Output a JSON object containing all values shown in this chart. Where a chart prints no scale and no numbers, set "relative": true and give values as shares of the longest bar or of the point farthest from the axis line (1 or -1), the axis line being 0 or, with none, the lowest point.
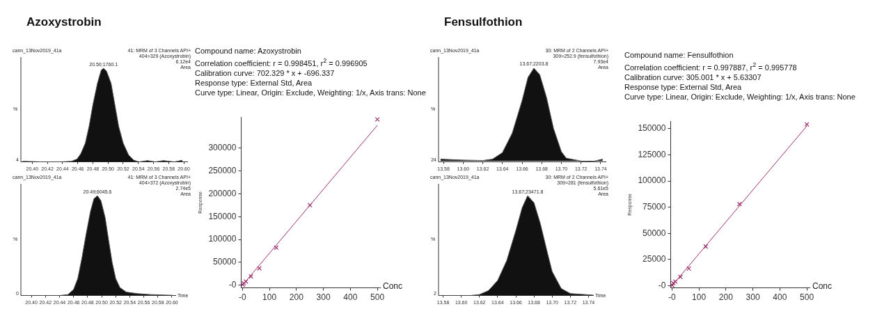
{
  "chart_data": [
    {
      "type": "area",
      "title": "Azoxystrobin",
      "relative": true,
      "ylabel": "%",
      "color": "#111111",
      "grid": false,
      "legend": false,
      "x": [
        20.3875,
        20.4125,
        20.4375,
        20.4518,
        20.459,
        20.464,
        20.47,
        20.475,
        20.48,
        20.486,
        20.491,
        20.494,
        20.498,
        20.504,
        20.509,
        20.514,
        20.52,
        20.527,
        20.534,
        20.541,
        20.552,
        20.5625,
        20.573,
        20.5875,
        20.598
      ],
      "values": [
        0.007,
        0,
        0,
        0.007,
        0.03,
        0.086,
        0.2,
        0.38,
        0.61,
        0.84,
        0.98,
        1,
        0.97,
        0.84,
        0.61,
        0.38,
        0.2,
        0.075,
        0.018,
        0,
        0.014,
        0,
        0.014,
        0,
        0.018
      ],
      "xlim": [
        20.385,
        20.605
      ],
      "xticks": [
        {
          "value": 20.4,
          "label": "20.40"
        },
        {
          "value": 20.42,
          "label": "20.42"
        },
        {
          "value": 20.44,
          "label": "20.44"
        },
        {
          "value": 20.46,
          "label": "20.46"
        },
        {
          "value": 20.48,
          "label": "20.48"
        },
        {
          "value": 20.5,
          "label": "20.50"
        },
        {
          "value": 20.52,
          "label": "20.52"
        },
        {
          "value": 20.54,
          "label": "20.54"
        },
        {
          "value": 20.56,
          "label": "20.56"
        },
        {
          "value": 20.58,
          "label": "20.58"
        },
        {
          "value": 20.6,
          "label": "20.60"
        }
      ],
      "annotations": [
        "cann_13Nov2019_41a",
        "41: MRM of 3 Channels API+",
        "404>329 (Azoxystrobin)",
        "6.12e4",
        "Area",
        "4",
        {
          "text": "20.50;1760.1",
          "x": 20.494,
          "y": 1
        }
      ]
    },
    {
      "type": "area",
      "relative": true,
      "ylabel": "%",
      "xlabel": "Time",
      "color": "#111111",
      "grid": false,
      "legend": false,
      "x": [
        20.385,
        20.44,
        20.452,
        20.46,
        20.466,
        20.472,
        20.478,
        20.484,
        20.489,
        20.494,
        20.499,
        20.505,
        20.51,
        20.515,
        20.52,
        20.526,
        20.535,
        20.55,
        20.57,
        20.6
      ],
      "values": [
        0,
        0,
        0.01,
        0.06,
        0.17,
        0.38,
        0.62,
        0.84,
        0.97,
        1,
        0.95,
        0.78,
        0.55,
        0.33,
        0.17,
        0.08,
        0.035,
        0.02,
        0.01,
        0.003
      ],
      "xlim": [
        20.385,
        20.605
      ],
      "xticks": [
        {
          "value": 20.4,
          "label": "20.40"
        },
        {
          "value": 20.42,
          "label": "20.42"
        },
        {
          "value": 20.44,
          "label": "20.44"
        },
        {
          "value": 20.46,
          "label": "20.46"
        },
        {
          "value": 20.48,
          "label": "20.48"
        },
        {
          "value": 20.5,
          "label": "20.50"
        },
        {
          "value": 20.52,
          "label": "20.52"
        },
        {
          "value": 20.54,
          "label": "20.54"
        },
        {
          "value": 20.56,
          "label": "20.56"
        },
        {
          "value": 20.58,
          "label": "20.58"
        },
        {
          "value": 20.6,
          "label": "20.60"
        }
      ],
      "annotations": [
        "cann_13Nov2019_41a",
        "41: MRM of 3 Channels API+",
        "404>372 (Azoxystrobin)",
        "2.74e5",
        "Area",
        "0",
        {
          "text": "20.49;6045.6",
          "x": 20.494,
          "y": 1
        }
      ]
    },
    {
      "type": "scatter",
      "xlabel": "Conc",
      "ylabel": "Response",
      "grid": false,
      "legend": false,
      "annotations": [
        "Compound name: Azoxystrobin",
        "Correlation coefficient: r = 0.998451, r$^{2}$ = 0.996905",
        "Calibration curve: 702.329 * x + -696.337",
        "Response type: External Std, Area",
        "Curve type: Linear, Origin: Exclude, Weighting: 1/x, Axis trans: None"
      ],
      "series": [
        {
          "type": "scatter",
          "marker": "cross",
          "color": "#9b2d6b",
          "x": [
            1,
            5,
            12.5,
            31.25,
            62.5,
            125,
            250,
            500
          ],
          "values": [
            1000,
            4000,
            8000,
            19000,
            37000,
            82000,
            175000,
            363000
          ]
        },
        {
          "type": "line",
          "color": "#9b2d6b",
          "x": [
            0,
            500
          ],
          "values": [
            0,
            350000
          ]
        }
      ],
      "xlim": [
        -5,
        510
      ],
      "xticks": [
        {
          "value": 0,
          "label": "-0"
        },
        100,
        200,
        300,
        400,
        500
      ],
      "ylim": [
        -6000,
        368000
      ],
      "yticks": [
        {
          "value": 0,
          "label": "-0"
        },
        50000,
        100000,
        150000,
        200000,
        250000,
        300000
      ]
    },
    {
      "type": "area",
      "title": "Fensulfothion",
      "relative": true,
      "ylabel": "%",
      "color": "#111111",
      "grid": false,
      "legend": false,
      "x": [
        13.577,
        13.6,
        13.62,
        13.63,
        13.64,
        13.65,
        13.66,
        13.666,
        13.672,
        13.678,
        13.685,
        13.692,
        13.7,
        13.705,
        13.71,
        13.72,
        13.73,
        13.742
      ],
      "values": [
        0.02,
        0.01,
        0.005,
        0.02,
        0.09,
        0.3,
        0.65,
        0.9,
        1,
        0.93,
        0.68,
        0.35,
        0.1,
        0.03,
        0.02,
        0,
        -0.01,
        0.02
      ],
      "xlim": [
        13.575,
        13.745
      ],
      "xticks": [
        {
          "value": 13.58,
          "label": "13.58"
        },
        {
          "value": 13.6,
          "label": "13.60"
        },
        {
          "value": 13.62,
          "label": "13.62"
        },
        {
          "value": 13.64,
          "label": "13.64"
        },
        {
          "value": 13.66,
          "label": "13.66"
        },
        {
          "value": 13.68,
          "label": "13.68"
        },
        {
          "value": 13.7,
          "label": "13.70"
        },
        {
          "value": 13.72,
          "label": "13.72"
        },
        {
          "value": 13.74,
          "label": "13.74"
        }
      ],
      "annotations": [
        "cann_13Nov2019_41a",
        "30: MRM of 2 Channels API+",
        "309>252.9 (fensulfothion)",
        "7.93e4",
        "Area",
        "24",
        {
          "text": "13.67;2203.8",
          "x": 13.672,
          "y": 1
        }
      ]
    },
    {
      "type": "area",
      "relative": true,
      "ylabel": "%",
      "xlabel": "Time",
      "color": "#111111",
      "grid": false,
      "legend": false,
      "x": [
        13.575,
        13.61,
        13.62,
        13.63,
        13.64,
        13.65,
        13.66,
        13.667,
        13.673,
        13.68,
        13.687,
        13.695,
        13.7,
        13.71,
        13.72,
        13.745
      ],
      "values": [
        0,
        0,
        0.01,
        0.05,
        0.15,
        0.35,
        0.65,
        0.88,
        1,
        0.93,
        0.72,
        0.42,
        0.24,
        0.07,
        0.02,
        0.005
      ],
      "xlim": [
        13.575,
        13.745
      ],
      "xticks": [
        {
          "value": 13.58,
          "label": "13.58"
        },
        {
          "value": 13.6,
          "label": "13.60"
        },
        {
          "value": 13.62,
          "label": "13.62"
        },
        {
          "value": 13.64,
          "label": "13.64"
        },
        {
          "value": 13.66,
          "label": "13.66"
        },
        {
          "value": 13.68,
          "label": "13.68"
        },
        {
          "value": 13.7,
          "label": "13.70"
        },
        {
          "value": 13.72,
          "label": "13.72"
        },
        {
          "value": 13.74,
          "label": "13.74"
        }
      ],
      "annotations": [
        "cann_13Nov2019_41a",
        "30: MRM of 2 Channels API+",
        "309>281 (fensulfothion)",
        "5.61e5",
        "Area",
        "2",
        {
          "text": "13.67;23471.8",
          "x": 13.673,
          "y": 1
        }
      ]
    },
    {
      "type": "scatter",
      "xlabel": "Conc",
      "ylabel": "Response",
      "grid": false,
      "legend": false,
      "annotations": [
        "Compound name: Fensulfothion",
        "Correlation coefficient: r = 0.997887, r$^{2}$ = 0.995778",
        "Calibration curve: 305.001 * x + 5.63307",
        "Response type: External Std, Area",
        "Curve type: Linear, Origin: Exclude, Weighting: 1/x, Axis trans: None"
      ],
      "series": [
        {
          "type": "scatter",
          "marker": "cross",
          "color": "#9b2d6b",
          "x": [
            1,
            5,
            12.5,
            31.25,
            62.5,
            125,
            250,
            500
          ],
          "values": [
            500,
            2500,
            4000,
            8500,
            16500,
            37500,
            78000,
            154000
          ]
        },
        {
          "type": "line",
          "color": "#9b2d6b",
          "x": [
            0,
            500
          ],
          "values": [
            0,
            152500
          ]
        }
      ],
      "xlim": [
        -5,
        510
      ],
      "xticks": [
        {
          "value": 0,
          "label": "-0"
        },
        100,
        200,
        300,
        400,
        500
      ],
      "ylim": [
        -2000,
        157000
      ],
      "yticks": [
        {
          "value": 0,
          "label": "-0"
        },
        25000,
        50000,
        75000,
        100000,
        125000,
        150000
      ]
    }
  ]
}
